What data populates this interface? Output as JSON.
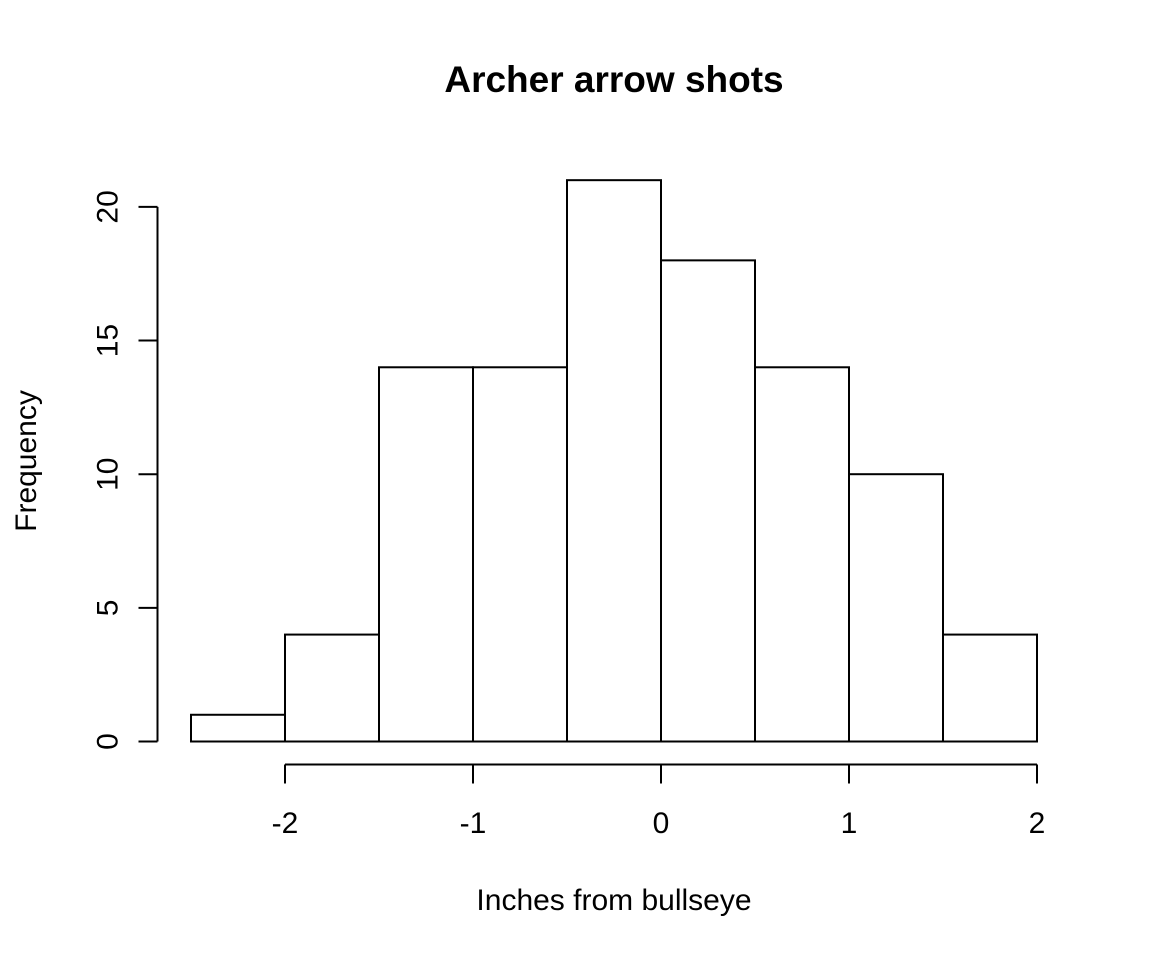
{
  "chart_data": {
    "type": "bar",
    "title": "Archer arrow shots",
    "xlabel": "Inches from bullseye",
    "ylabel": "Frequency",
    "bins": [
      {
        "from": -2.5,
        "to": -2.0,
        "count": 1
      },
      {
        "from": -2.0,
        "to": -1.5,
        "count": 4
      },
      {
        "from": -1.5,
        "to": -1.0,
        "count": 14
      },
      {
        "from": -1.0,
        "to": -0.5,
        "count": 14
      },
      {
        "from": -0.5,
        "to": 0.0,
        "count": 21
      },
      {
        "from": 0.0,
        "to": 0.5,
        "count": 18
      },
      {
        "from": 0.5,
        "to": 1.0,
        "count": 14
      },
      {
        "from": 1.0,
        "to": 1.5,
        "count": 10
      },
      {
        "from": 1.5,
        "to": 2.0,
        "count": 4
      }
    ],
    "x_ticks": [
      -2,
      -1,
      0,
      1,
      2
    ],
    "x_tick_labels": [
      "-2",
      "-1",
      "0",
      "1",
      "2"
    ],
    "y_ticks": [
      0,
      5,
      10,
      15,
      20
    ],
    "y_tick_labels": [
      "0",
      "5",
      "10",
      "15",
      "20"
    ],
    "xlim": [
      -2.5,
      2.0
    ],
    "ylim": [
      0,
      21
    ],
    "grid": false,
    "legend": "none",
    "bar_fill": "#ffffff",
    "bar_stroke": "#000000"
  }
}
